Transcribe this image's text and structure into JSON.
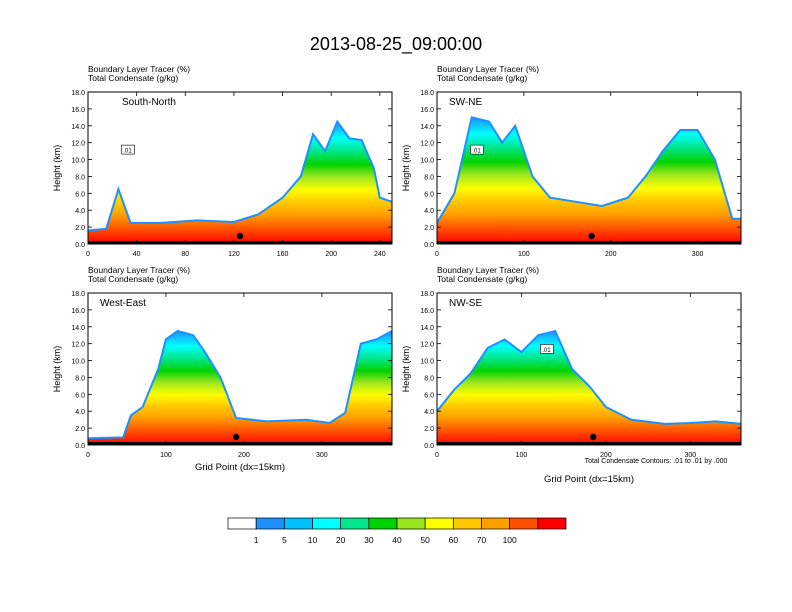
{
  "figure": {
    "title": "2013-08-25_09:00:00",
    "contour_note": "Total Condensate Contours: .01 to .01 by .000"
  },
  "colorbar": {
    "labels": [
      "1",
      "5",
      "10",
      "20",
      "30",
      "40",
      "50",
      "60",
      "70",
      "100"
    ],
    "colors": [
      "#ffffff",
      "#1e90ff",
      "#00bfff",
      "#00ffff",
      "#00e68c",
      "#00d200",
      "#9be61e",
      "#ffff00",
      "#ffc800",
      "#ffa000",
      "#ff5000",
      "#ff0000"
    ]
  },
  "chart_data": [
    {
      "type": "heatmap",
      "panel": "South-North",
      "title_lines": [
        "Boundary Layer Tracer   (%)",
        "Total Condensate   (g/kg)"
      ],
      "ylabel": "Height (km)",
      "xlabel": "",
      "xlim": [
        0,
        250
      ],
      "ylim": [
        0,
        18
      ],
      "xticks": [
        0,
        40,
        80,
        120,
        160,
        200,
        240
      ],
      "yticks": [
        "0.0",
        "2.0",
        "4.0",
        "6.0",
        "8.0",
        "10.0",
        "12.0",
        "14.0",
        "16.0",
        "18.0"
      ],
      "contour_label": ".01",
      "marker_x": 125,
      "profile": [
        [
          0,
          1.6
        ],
        [
          15,
          1.8
        ],
        [
          25,
          6.5
        ],
        [
          35,
          2.5
        ],
        [
          60,
          2.5
        ],
        [
          90,
          2.8
        ],
        [
          120,
          2.6
        ],
        [
          140,
          3.5
        ],
        [
          160,
          5.5
        ],
        [
          175,
          8
        ],
        [
          185,
          13
        ],
        [
          195,
          11
        ],
        [
          205,
          14.5
        ],
        [
          215,
          12.5
        ],
        [
          225,
          12.3
        ],
        [
          235,
          9
        ],
        [
          240,
          5.5
        ],
        [
          250,
          5
        ]
      ]
    },
    {
      "type": "heatmap",
      "panel": "SW-NE",
      "title_lines": [
        "Boundary Layer Tracer   (%)",
        "Total Condensate   (g/kg)"
      ],
      "ylabel": "Height (km)",
      "xlabel": "",
      "xlim": [
        0,
        350
      ],
      "ylim": [
        0,
        18
      ],
      "xticks": [
        0,
        100,
        200,
        300
      ],
      "yticks": [
        "0.0",
        "2.0",
        "4.0",
        "6.0",
        "8.0",
        "10.0",
        "12.0",
        "14.0",
        "16.0",
        "18.0"
      ],
      "contour_label": ".01",
      "marker_x": 178,
      "profile": [
        [
          0,
          2.5
        ],
        [
          20,
          6
        ],
        [
          40,
          15
        ],
        [
          60,
          14.5
        ],
        [
          75,
          12
        ],
        [
          90,
          14
        ],
        [
          110,
          8
        ],
        [
          130,
          5.5
        ],
        [
          160,
          5
        ],
        [
          190,
          4.5
        ],
        [
          220,
          5.5
        ],
        [
          240,
          8
        ],
        [
          260,
          11
        ],
        [
          280,
          13.5
        ],
        [
          300,
          13.5
        ],
        [
          320,
          10
        ],
        [
          340,
          3
        ],
        [
          350,
          3
        ]
      ]
    },
    {
      "type": "heatmap",
      "panel": "West-East",
      "title_lines": [
        "Boundary Layer Tracer   (%)",
        "Total Condensate   (g/kg)"
      ],
      "ylabel": "Height (km)",
      "xlabel": "Grid Point (dx=15km)",
      "xlim": [
        0,
        390
      ],
      "ylim": [
        0,
        18
      ],
      "xticks": [
        0,
        100,
        200,
        300
      ],
      "yticks": [
        "0.0",
        "2.0",
        "4.0",
        "6.0",
        "8.0",
        "10.0",
        "12.0",
        "14.0",
        "16.0",
        "18.0"
      ],
      "contour_label": "",
      "marker_x": 190,
      "profile": [
        [
          0,
          0.8
        ],
        [
          45,
          0.9
        ],
        [
          55,
          3.5
        ],
        [
          70,
          4.5
        ],
        [
          90,
          9
        ],
        [
          100,
          12.5
        ],
        [
          115,
          13.5
        ],
        [
          135,
          13
        ],
        [
          150,
          11
        ],
        [
          170,
          8
        ],
        [
          190,
          3.2
        ],
        [
          230,
          2.8
        ],
        [
          280,
          3
        ],
        [
          310,
          2.6
        ],
        [
          330,
          3.8
        ],
        [
          350,
          12
        ],
        [
          370,
          12.5
        ],
        [
          390,
          13.5
        ]
      ]
    },
    {
      "type": "heatmap",
      "panel": "NW-SE",
      "title_lines": [
        "Boundary Layer Tracer   (%)",
        "Total Condensate   (g/kg)"
      ],
      "ylabel": "Height (km)",
      "xlabel": "Grid Point (dx=15km)",
      "xlim": [
        0,
        360
      ],
      "ylim": [
        0,
        18
      ],
      "xticks": [
        0,
        100,
        200,
        300
      ],
      "yticks": [
        "0.0",
        "2.0",
        "4.0",
        "6.0",
        "8.0",
        "10.0",
        "12.0",
        "14.0",
        "16.0",
        "18.0"
      ],
      "contour_label": ".01",
      "marker_x": 185,
      "profile": [
        [
          0,
          4
        ],
        [
          20,
          6.5
        ],
        [
          40,
          8.5
        ],
        [
          60,
          11.5
        ],
        [
          80,
          12.5
        ],
        [
          100,
          11
        ],
        [
          120,
          13
        ],
        [
          140,
          13.5
        ],
        [
          160,
          9
        ],
        [
          180,
          7
        ],
        [
          200,
          4.5
        ],
        [
          230,
          3
        ],
        [
          270,
          2.5
        ],
        [
          300,
          2.6
        ],
        [
          330,
          2.8
        ],
        [
          360,
          2.5
        ]
      ]
    }
  ]
}
